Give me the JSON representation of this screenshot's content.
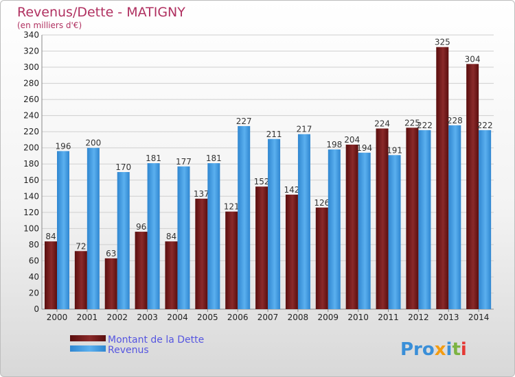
{
  "chart_data": {
    "type": "bar",
    "title": "Revenus/Dette - MATIGNY",
    "subtitle": "(en milliers d'€)",
    "categories": [
      "2000",
      "2001",
      "2002",
      "2003",
      "2004",
      "2005",
      "2006",
      "2007",
      "2008",
      "2009",
      "2010",
      "2011",
      "2012",
      "2013",
      "2014"
    ],
    "series": [
      {
        "name": "Montant de la Dette",
        "color": "#7a1c1c",
        "values": [
          84,
          72,
          63,
          96,
          84,
          137,
          121,
          152,
          142,
          126,
          204,
          224,
          225,
          325,
          304
        ]
      },
      {
        "name": "Revenus",
        "color": "#3e9be4",
        "values": [
          196,
          200,
          170,
          181,
          177,
          181,
          227,
          211,
          217,
          198,
          194,
          191,
          222,
          228,
          222
        ]
      }
    ],
    "ylim": [
      0,
      340
    ],
    "yticks": [
      0,
      20,
      40,
      60,
      80,
      100,
      120,
      140,
      160,
      180,
      200,
      220,
      240,
      260,
      280,
      300,
      320,
      340
    ],
    "grid": true,
    "legend_position": "bottom-left"
  },
  "logo_text": "Proxiti"
}
